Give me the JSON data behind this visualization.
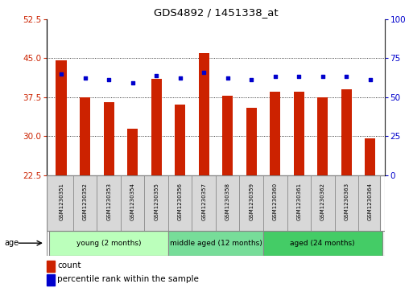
{
  "title": "GDS4892 / 1451338_at",
  "samples": [
    "GSM1230351",
    "GSM1230352",
    "GSM1230353",
    "GSM1230354",
    "GSM1230355",
    "GSM1230356",
    "GSM1230357",
    "GSM1230358",
    "GSM1230359",
    "GSM1230360",
    "GSM1230361",
    "GSM1230362",
    "GSM1230363",
    "GSM1230364"
  ],
  "counts": [
    44.5,
    37.5,
    36.5,
    31.5,
    41.0,
    36.0,
    46.0,
    37.8,
    35.5,
    38.5,
    38.5,
    37.5,
    39.0,
    29.5
  ],
  "percentiles": [
    65,
    62,
    61,
    59,
    64,
    62,
    66,
    62,
    61,
    63,
    63,
    63,
    63,
    61
  ],
  "ylim_left": [
    22.5,
    52.5
  ],
  "ylim_right": [
    0,
    100
  ],
  "yticks_left": [
    22.5,
    30,
    37.5,
    45,
    52.5
  ],
  "yticks_right": [
    0,
    25,
    50,
    75,
    100
  ],
  "bar_color": "#cc2200",
  "dot_color": "#0000cc",
  "groups": [
    {
      "label": "young (2 months)",
      "start": 0,
      "end": 5,
      "color": "#bbffbb"
    },
    {
      "label": "middle aged (12 months)",
      "start": 5,
      "end": 9,
      "color": "#77dd99"
    },
    {
      "label": "aged (24 months)",
      "start": 9,
      "end": 14,
      "color": "#44cc66"
    }
  ],
  "age_label": "age",
  "legend_count_label": "count",
  "legend_pct_label": "percentile rank within the sample",
  "bar_bottom": 22.5,
  "bar_width": 0.45,
  "sample_bg": "#d8d8d8",
  "grid_yticks": [
    30,
    37.5,
    45
  ]
}
